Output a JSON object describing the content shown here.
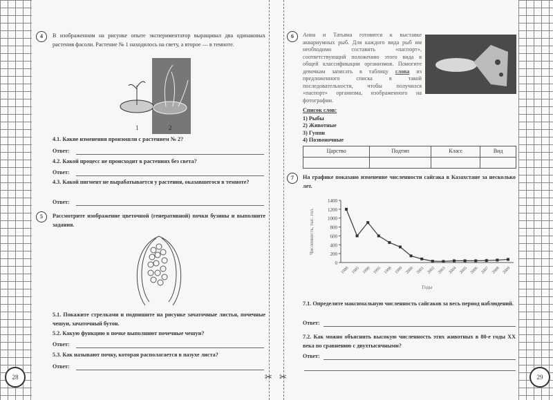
{
  "left_page": {
    "page_number": "28",
    "task4": {
      "number": "4",
      "text": "В изображенном на рисунке опыте экспериментатор выращивал два одинаковых растения фасоли. Растение № 1 находилось на свету, а второе — в темноте.",
      "figure_labels": [
        "1",
        "2"
      ],
      "q1": "4.1. Какие изменения произошли с растением № 2?",
      "q2": "4.2. Какой процесс не происходит в растениях без света?",
      "q3": "4.3. Какой пигмент не вырабатывается у растения, оказавшегося в темноте?"
    },
    "task5": {
      "number": "5",
      "text": "Рассмотрите изображение цветочной (генеративной) почки бузины и выполните задания.",
      "q1": "5.1. Покажите стрелками и подпишите на рисунке зачаточные листья, почечные чешуи, зачаточный бутон.",
      "q2": "5.2. Какую функцию в почке выполняют почечные чешуи?",
      "q3": "5.3. Как называют почку, которая располагается в пазухе листа?"
    },
    "answer_label": "Ответ:"
  },
  "right_page": {
    "page_number": "29",
    "task6": {
      "number": "6",
      "text": "Анна и Татьяна готовятся к выставке аквариумных рыб. Для каждого вида рыб им необходимо составить «паспорт», соответствующий положению этого вида в общей классификации организмов. Помогите девочкам записать в таблицу",
      "underlined": "слова",
      "text2": "из предложенного списка в такой последовательности, чтобы получился «паспорт» организма, изображенного на фотографии.",
      "list_title": "Список слов:",
      "list": [
        "1) Рыбы",
        "2) Животные",
        "3) Гуппи",
        "4) Позвоночные"
      ],
      "table_headers": [
        "Царство",
        "Подтип",
        "Класс",
        "Вид"
      ]
    },
    "task7": {
      "number": "7",
      "text": "На графике показано изменение численности сайгака в Казахстане за несколько лет.",
      "q1": "7.1. Определите максимальную численность сайгаков за весь период наблюдений.",
      "q2": "7.2. Как можно объяснить высокую численность этих животных в 80-е годы XX века по сравнению с двухтысячными?"
    },
    "answer_label": "Ответ:"
  },
  "chart_data": {
    "type": "line",
    "ylabel": "Численность, тыс. гол.",
    "xlabel": "Годы",
    "categories": [
      "1980",
      "1985",
      "1990",
      "1995",
      "1998",
      "1999",
      "2000",
      "2001",
      "2002",
      "2003",
      "2004",
      "2005",
      "2006",
      "2007",
      "2008",
      "2009"
    ],
    "values": [
      1200,
      600,
      900,
      600,
      450,
      350,
      150,
      80,
      30,
      25,
      40,
      40,
      40,
      45,
      55,
      70
    ],
    "yticks": [
      0,
      200,
      400,
      600,
      800,
      1000,
      1200,
      1400
    ],
    "ylim": [
      0,
      1400
    ],
    "grid": false,
    "marker": "square",
    "color": "#444444"
  }
}
